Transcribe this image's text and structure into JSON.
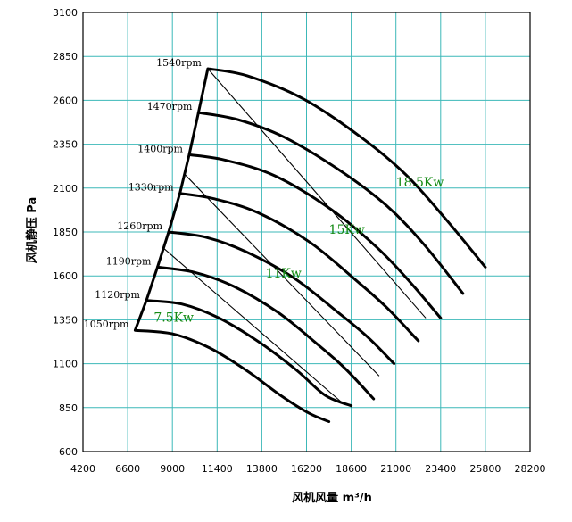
{
  "chart_data": {
    "type": "line",
    "xlabel": "风机风量 m³/h",
    "ylabel": "风机静压 Pa",
    "xlim": [
      4200,
      28200
    ],
    "ylim": [
      600,
      3100
    ],
    "x_ticks": [
      4200,
      6600,
      9000,
      11400,
      13800,
      16200,
      18600,
      21000,
      23400,
      25800,
      28200
    ],
    "y_ticks": [
      600,
      850,
      1100,
      1350,
      1600,
      1850,
      2100,
      2350,
      2600,
      2850,
      3100
    ],
    "grid": true,
    "colors": {
      "grid": "#3cb8b8",
      "curve": "#000000",
      "power_label": "#138a13"
    },
    "series": [
      {
        "name": "1540rpm",
        "points": [
          [
            10900,
            2780
          ],
          [
            13000,
            2740
          ],
          [
            16000,
            2610
          ],
          [
            19000,
            2400
          ],
          [
            21500,
            2180
          ],
          [
            23700,
            1920
          ],
          [
            25800,
            1650
          ]
        ]
      },
      {
        "name": "1470rpm",
        "points": [
          [
            10400,
            2530
          ],
          [
            12500,
            2490
          ],
          [
            15000,
            2390
          ],
          [
            18000,
            2200
          ],
          [
            20500,
            2000
          ],
          [
            22500,
            1780
          ],
          [
            24600,
            1500
          ]
        ]
      },
      {
        "name": "1400rpm",
        "points": [
          [
            9900,
            2290
          ],
          [
            11800,
            2260
          ],
          [
            14500,
            2170
          ],
          [
            17500,
            1980
          ],
          [
            20000,
            1760
          ],
          [
            21800,
            1560
          ],
          [
            23400,
            1360
          ]
        ]
      },
      {
        "name": "1330rpm",
        "points": [
          [
            9400,
            2070
          ],
          [
            11200,
            2040
          ],
          [
            13600,
            1960
          ],
          [
            16400,
            1790
          ],
          [
            18800,
            1580
          ],
          [
            20500,
            1420
          ],
          [
            22200,
            1230
          ]
        ]
      },
      {
        "name": "1260rpm",
        "points": [
          [
            8800,
            1850
          ],
          [
            10800,
            1820
          ],
          [
            12900,
            1740
          ],
          [
            15500,
            1590
          ],
          [
            17800,
            1400
          ],
          [
            19500,
            1250
          ],
          [
            20900,
            1100
          ]
        ]
      },
      {
        "name": "1190rpm",
        "points": [
          [
            8200,
            1650
          ],
          [
            10200,
            1620
          ],
          [
            12300,
            1540
          ],
          [
            14700,
            1390
          ],
          [
            16800,
            1210
          ],
          [
            18300,
            1070
          ],
          [
            19800,
            900
          ]
        ]
      },
      {
        "name": "1120rpm",
        "points": [
          [
            7600,
            1460
          ],
          [
            9500,
            1440
          ],
          [
            11500,
            1360
          ],
          [
            13700,
            1220
          ],
          [
            15700,
            1060
          ],
          [
            17200,
            920
          ],
          [
            18600,
            860
          ]
        ]
      },
      {
        "name": "1050rpm",
        "points": [
          [
            7000,
            1290
          ],
          [
            9000,
            1270
          ],
          [
            11000,
            1190
          ],
          [
            13000,
            1060
          ],
          [
            14800,
            920
          ],
          [
            16300,
            820
          ],
          [
            17400,
            770
          ]
        ]
      }
    ],
    "boundary": [
      [
        7000,
        1290
      ],
      [
        7600,
        1460
      ],
      [
        8200,
        1650
      ],
      [
        8800,
        1850
      ],
      [
        9400,
        2070
      ],
      [
        9900,
        2290
      ],
      [
        10400,
        2530
      ],
      [
        10900,
        2780
      ]
    ],
    "power_lines": [
      {
        "label": "18.5Kw",
        "from": [
          10900,
          2780
        ],
        "to": [
          22600,
          1360
        ]
      },
      {
        "label": "15Kw",
        "from": [
          9650,
          2180
        ],
        "to": [
          20100,
          1030
        ]
      },
      {
        "label": "11Kw",
        "from": [
          8500,
          1760
        ],
        "to": [
          18200,
          870
        ]
      }
    ],
    "power_labels": [
      {
        "text": "18.5Kw",
        "x": 21000,
        "y": 2110
      },
      {
        "text": "15Kw",
        "x": 17400,
        "y": 1840
      },
      {
        "text": "11Kw",
        "x": 14000,
        "y": 1590
      },
      {
        "text": "7.5Kw",
        "x": 8000,
        "y": 1340
      }
    ]
  }
}
